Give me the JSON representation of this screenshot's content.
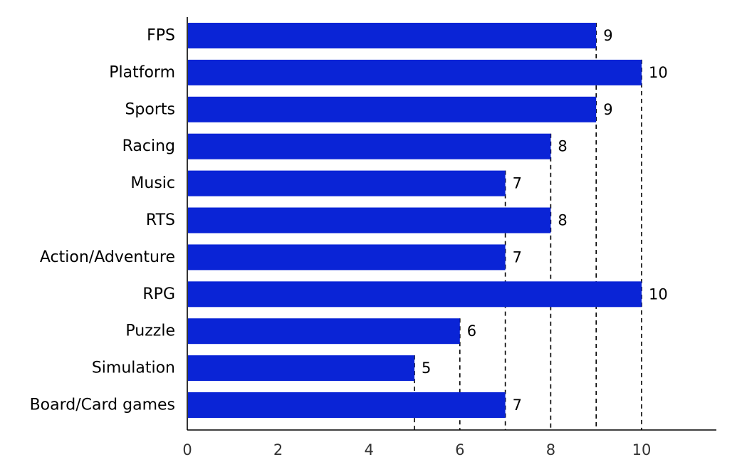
{
  "chart_data": {
    "type": "bar",
    "orientation": "horizontal",
    "title": "",
    "xlabel": "",
    "ylabel": "",
    "categories": [
      "FPS",
      "Platform",
      "Sports",
      "Racing",
      "Music",
      "RTS",
      "Action/Adventure",
      "RPG",
      "Puzzle",
      "Simulation",
      "Board/Card games"
    ],
    "values": [
      9,
      10,
      9,
      8,
      7,
      8,
      7,
      10,
      6,
      5,
      7
    ],
    "xlim": [
      0,
      11.6
    ],
    "xticks": [
      0,
      2,
      4,
      6,
      8,
      10
    ],
    "xtick_labels": [
      "0",
      "2",
      "4",
      "6",
      "8",
      "10"
    ],
    "reference_lines": [
      5,
      6,
      7,
      8,
      9,
      10
    ],
    "data_labels": [
      "9",
      "10",
      "9",
      "8",
      "7",
      "8",
      "7",
      "10",
      "6",
      "5",
      "7"
    ],
    "bar_color": "#0a24d6",
    "grid": false,
    "legend": "none"
  }
}
